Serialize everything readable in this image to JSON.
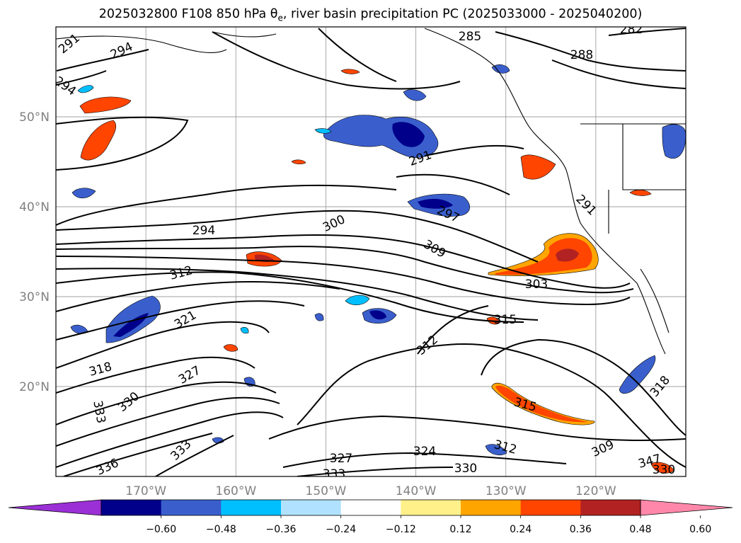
{
  "title": {
    "prefix": "2025032800 F108 850 hPa θ",
    "subscript": "e",
    "suffix": ", river basin precipitation PC (2025033000 - 2025040200)"
  },
  "map": {
    "lon_range": [
      -180,
      -110
    ],
    "lat_range": [
      10,
      60
    ],
    "lat_ticks": [
      "50°N",
      "40°N",
      "30°N",
      "20°N"
    ],
    "lon_ticks": [
      "170°W",
      "160°W",
      "150°W",
      "140°W",
      "130°W",
      "120°W"
    ],
    "gridlines": true,
    "tick_label_color": "#808080"
  },
  "contours": {
    "variable": "850 hPa theta-e (K)",
    "labels": [
      "291",
      "294",
      "294",
      "285",
      "282",
      "288",
      "291",
      "291",
      "297",
      "294",
      "300",
      "309",
      "312",
      "303",
      "321",
      "315",
      "312",
      "318",
      "327",
      "330",
      "315",
      "318",
      "333",
      "333",
      "312",
      "309",
      "324",
      "327",
      "336",
      "333",
      "330",
      "347",
      "330"
    ]
  },
  "colorbar": {
    "ticks": [
      "−0.60",
      "−0.48",
      "−0.36",
      "−0.24",
      "−0.12",
      "0.12",
      "0.24",
      "0.36",
      "0.48",
      "0.60"
    ],
    "extend": "both",
    "colors": [
      "#9b30d6",
      "#00008b",
      "#3a5fcd",
      "#00bfff",
      "#b0e2ff",
      "#ffffff",
      "#fff08a",
      "#ffa500",
      "#ff4500",
      "#b22222",
      "#ff88aa"
    ]
  }
}
